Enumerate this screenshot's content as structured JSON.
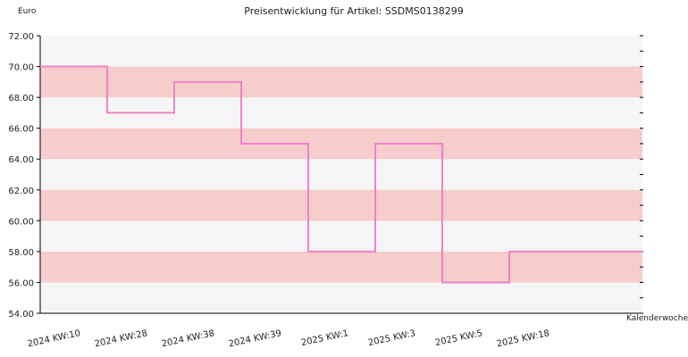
{
  "chart_data": {
    "type": "line",
    "title": "Preisentwicklung für Artikel: SSDMS0138299",
    "ylabel": "Euro",
    "xlabel": "Kalenderwoche",
    "categories": [
      "2024 KW:10",
      "2024 KW:28",
      "2024 KW:38",
      "2024 KW:39",
      "2025 KW:1",
      "2025 KW:3",
      "2025 KW:5",
      "2025 KW:18"
    ],
    "series": [
      {
        "values": [
          70.0,
          67.0,
          69.0,
          65.0,
          58.0,
          65.0,
          56.0,
          58.0
        ]
      }
    ],
    "step": true,
    "ylim": [
      54,
      72
    ],
    "yticks": [
      "54.00",
      "56.00",
      "58.00",
      "60.00",
      "62.00",
      "64.00",
      "66.00",
      "68.00",
      "70.00",
      "72.00"
    ],
    "grid": "horizontal bands",
    "colors": {
      "line": "#ee82c8",
      "band_dark": "#f7cccc",
      "band_light": "#f5f5f5",
      "axis": "#000000"
    }
  }
}
